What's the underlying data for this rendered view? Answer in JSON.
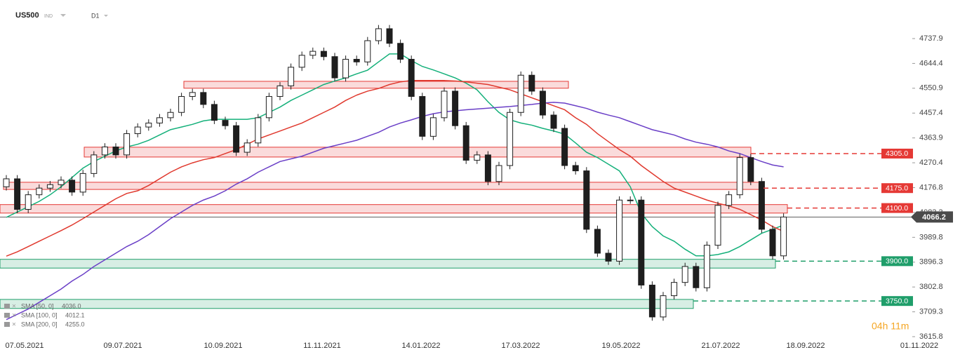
{
  "chart_data": {
    "type": "candlestick",
    "symbol": "US500",
    "instrument_type": "IND",
    "timeframe": "D1",
    "timer": "04h 11m",
    "x_labels": [
      "07.05.2021",
      "09.07.2021",
      "10.09.2021",
      "11.11.2021",
      "14.01.2022",
      "17.03.2022",
      "19.05.2022",
      "21.07.2022",
      "18.09.2022",
      "01.11.2022"
    ],
    "ylim": [
      3594.7,
      4883.1
    ],
    "yticks": [
      4737.9,
      4644.4,
      4550.9,
      4457.4,
      4363.9,
      4270.4,
      4176.8,
      4083.3,
      3989.8,
      3896.3,
      3802.8,
      3709.3,
      3615.8
    ],
    "up_color": "#ffffff",
    "down_color": "#1e1e1e",
    "open": [
      4180,
      4210,
      4095,
      4150,
      4175,
      4188,
      4205,
      4160,
      4230,
      4300,
      4330,
      4300,
      4380,
      4405,
      4420,
      4440,
      4460,
      4520,
      4535,
      4490,
      4430,
      4410,
      4310,
      4345,
      4440,
      4520,
      4560,
      4630,
      4675,
      4690,
      4670,
      4590,
      4660,
      4650,
      4730,
      4775,
      4720,
      4660,
      4520,
      4370,
      4440,
      4540,
      4410,
      4280,
      4300,
      4200,
      4260,
      4460,
      4600,
      4540,
      4450,
      4400,
      4260,
      4240,
      4020,
      3930,
      3900,
      4130,
      4130,
      3810,
      3690,
      3770,
      3820,
      3880,
      3800,
      3960,
      4110,
      4150,
      4290,
      4200,
      4020,
      3920
    ],
    "high": [
      4224,
      4224,
      4164,
      4189,
      4202,
      4219,
      4219,
      4244,
      4314,
      4344,
      4344,
      4394,
      4419,
      4434,
      4454,
      4474,
      4534,
      4549,
      4549,
      4504,
      4444,
      4424,
      4359,
      4454,
      4534,
      4574,
      4644,
      4689,
      4704,
      4704,
      4684,
      4674,
      4674,
      4744,
      4789,
      4789,
      4734,
      4674,
      4534,
      4454,
      4554,
      4554,
      4424,
      4314,
      4314,
      4274,
      4474,
      4614,
      4614,
      4554,
      4464,
      4414,
      4274,
      4254,
      4034,
      3944,
      4144,
      4144,
      4144,
      3824,
      3784,
      3834,
      3894,
      3894,
      3974,
      4124,
      4164,
      4304,
      4304,
      4214,
      4034,
      4080
    ],
    "low": [
      4166,
      4081,
      4081,
      4136,
      4161,
      4174,
      4146,
      4146,
      4216,
      4286,
      4286,
      4286,
      4366,
      4391,
      4406,
      4426,
      4446,
      4506,
      4476,
      4416,
      4396,
      4296,
      4296,
      4331,
      4426,
      4506,
      4546,
      4616,
      4661,
      4656,
      4576,
      4576,
      4636,
      4636,
      4716,
      4706,
      4646,
      4506,
      4356,
      4356,
      4426,
      4396,
      4266,
      4266,
      4186,
      4186,
      4246,
      4446,
      4526,
      4436,
      4386,
      4246,
      4226,
      4006,
      3916,
      3886,
      3886,
      4116,
      3796,
      3676,
      3676,
      3756,
      3806,
      3786,
      3786,
      3946,
      4096,
      4136,
      4186,
      4006,
      3906,
      3906
    ],
    "close": [
      4210,
      4095,
      4150,
      4175,
      4188,
      4205,
      4160,
      4230,
      4300,
      4330,
      4300,
      4380,
      4405,
      4420,
      4440,
      4460,
      4520,
      4535,
      4490,
      4430,
      4410,
      4310,
      4345,
      4440,
      4520,
      4560,
      4630,
      4675,
      4690,
      4670,
      4590,
      4660,
      4650,
      4730,
      4775,
      4720,
      4660,
      4520,
      4370,
      4440,
      4540,
      4410,
      4280,
      4300,
      4200,
      4260,
      4460,
      4600,
      4540,
      4450,
      4400,
      4260,
      4240,
      4020,
      3930,
      3900,
      4130,
      4130,
      3810,
      3690,
      3770,
      3820,
      3880,
      3800,
      3960,
      4110,
      4150,
      4290,
      4200,
      4020,
      3920,
      4066.2
    ],
    "last_price": 4066.2,
    "last_price_color": "#4a4a4a",
    "series": [
      {
        "name": "SMA [50, 0]",
        "color": "#14b07a",
        "last": {
          "value": 4036,
          "label": "4036.0"
        },
        "values": [
          4065,
          4085,
          4105,
          4125,
          4150,
          4180,
          4215,
          4250,
          4275,
          4295,
          4315,
          4330,
          4340,
          4355,
          4375,
          4395,
          4405,
          4415,
          4428,
          4434,
          4434,
          4434,
          4434,
          4440,
          4460,
          4480,
          4505,
          4525,
          4545,
          4565,
          4578,
          4590,
          4605,
          4619,
          4650,
          4680,
          4680,
          4655,
          4633,
          4620,
          4605,
          4590,
          4570,
          4545,
          4500,
          4460,
          4432,
          4420,
          4412,
          4400,
          4390,
          4378,
          4345,
          4310,
          4290,
          4265,
          4240,
          4180,
          4080,
          4030,
          3995,
          3975,
          3945,
          3920,
          3920,
          3925,
          3935,
          3955,
          3980,
          4005,
          4020,
          4036
        ]
      },
      {
        "name": "SMA [100, 0]",
        "color": "#e0392e",
        "last": {
          "value": 4012.1,
          "label": "4012.1"
        },
        "values": [
          3919,
          3935,
          3955,
          3975,
          3995,
          4015,
          4036,
          4060,
          4085,
          4110,
          4135,
          4155,
          4165,
          4185,
          4210,
          4235,
          4255,
          4270,
          4282,
          4290,
          4305,
          4320,
          4340,
          4360,
          4375,
          4390,
          4405,
          4420,
          4440,
          4460,
          4480,
          4505,
          4525,
          4540,
          4550,
          4565,
          4575,
          4580,
          4580,
          4580,
          4580,
          4578,
          4575,
          4570,
          4565,
          4555,
          4545,
          4530,
          4515,
          4500,
          4485,
          4470,
          4440,
          4415,
          4380,
          4350,
          4320,
          4295,
          4260,
          4230,
          4200,
          4175,
          4160,
          4145,
          4130,
          4118,
          4108,
          4095,
          4075,
          4055,
          4030,
          4012.1
        ]
      },
      {
        "name": "SMA [200, 0]",
        "color": "#6a3fc7",
        "last": {
          "value": 4255,
          "label": "4255.0"
        },
        "values": [
          3680,
          3700,
          3720,
          3745,
          3770,
          3795,
          3825,
          3850,
          3880,
          3905,
          3930,
          3955,
          3975,
          4000,
          4030,
          4060,
          4085,
          4110,
          4130,
          4145,
          4165,
          4190,
          4210,
          4235,
          4255,
          4275,
          4285,
          4295,
          4310,
          4325,
          4335,
          4345,
          4355,
          4370,
          4385,
          4405,
          4420,
          4432,
          4445,
          4455,
          4462,
          4466,
          4470,
          4473,
          4476,
          4479,
          4482,
          4486,
          4490,
          4495,
          4498,
          4495,
          4485,
          4475,
          4461,
          4450,
          4440,
          4425,
          4410,
          4395,
          4385,
          4375,
          4360,
          4348,
          4340,
          4330,
          4315,
          4305,
          4290,
          4275,
          4262,
          4255
        ]
      }
    ],
    "zones": [
      {
        "low": 4551,
        "high": 4577,
        "color": "#e53935"
      },
      {
        "low": 4292,
        "high": 4329,
        "color": "#e53935"
      },
      {
        "low": 4170,
        "high": 4197,
        "color": "#e53935"
      },
      {
        "low": 4081,
        "high": 4113,
        "color": "#e53935"
      },
      {
        "low": 3874,
        "high": 3907,
        "color": "#1f9e6a"
      },
      {
        "low": 3722,
        "high": 3756,
        "color": "#1f9e6a"
      }
    ],
    "levels": [
      {
        "value": 4305,
        "label": "4305.0",
        "color": "#e53935"
      },
      {
        "value": 4175,
        "label": "4175.0",
        "color": "#e53935"
      },
      {
        "value": 4100,
        "label": "4100.0",
        "color": "#e53935"
      },
      {
        "value": 3900,
        "label": "3900.0",
        "color": "#1f9e6a"
      },
      {
        "value": 3750,
        "label": "3750.0",
        "color": "#1f9e6a"
      }
    ]
  }
}
